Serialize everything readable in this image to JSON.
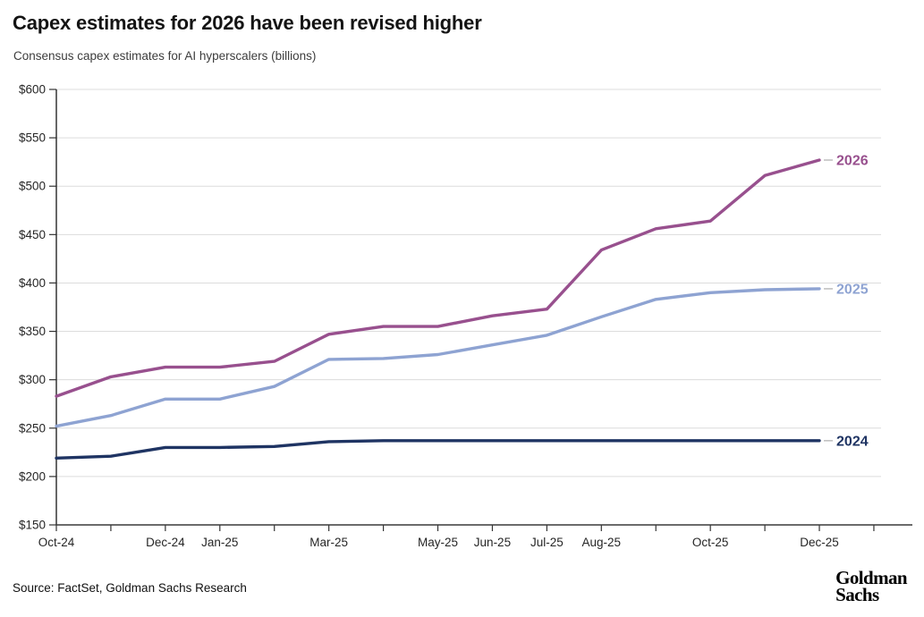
{
  "header": {
    "title": "Capex estimates for 2026 have been revised higher",
    "subtitle": "Consensus capex estimates for AI hyperscalers (billions)"
  },
  "footer": {
    "source": "Source: FactSet, Goldman Sachs Research",
    "logo_line1": "Goldman",
    "logo_line2": "Sachs"
  },
  "chart_data": {
    "type": "line",
    "title": "Capex estimates for 2026 have been revised higher",
    "subtitle": "Consensus capex estimates for AI hyperscalers (billions)",
    "categories": [
      "Oct-24",
      "Nov-24",
      "Dec-24",
      "Jan-25",
      "Feb-25",
      "Mar-25",
      "Apr-25",
      "May-25",
      "Jun-25",
      "Jul-25",
      "Aug-25",
      "Sep-25",
      "Oct-25",
      "Nov-25",
      "Dec-25"
    ],
    "x_tick_labels": [
      "Oct-24",
      "",
      "Dec-24",
      "Jan-25",
      "",
      "Mar-25",
      "",
      "May-25",
      "Jun-25",
      "Jul-25",
      "Aug-25",
      "",
      "Oct-25",
      "",
      "Dec-25",
      ""
    ],
    "series": [
      {
        "name": "2026",
        "color": "#98508E",
        "values": [
          283,
          303,
          313,
          313,
          319,
          347,
          355,
          355,
          366,
          373,
          434,
          456,
          464,
          511,
          527
        ]
      },
      {
        "name": "2025",
        "color": "#8EA3D2",
        "values": [
          252,
          263,
          280,
          280,
          293,
          321,
          322,
          326,
          336,
          346,
          365,
          383,
          390,
          393,
          394
        ]
      },
      {
        "name": "2024",
        "color": "#1F3463",
        "values": [
          219,
          221,
          230,
          230,
          231,
          236,
          237,
          237,
          237,
          237,
          237,
          237,
          237,
          237,
          237
        ]
      }
    ],
    "y_axis": {
      "min": 150,
      "max": 600,
      "step": 50,
      "tick_prefix": "$"
    },
    "ylim": [
      150,
      600
    ],
    "grid": true,
    "legend_position": "line-end-labels",
    "colors": {
      "grid": "#dcdcdc",
      "axis": "#333333",
      "tick_text": "#262626",
      "label_dash": "#b3b3b3"
    }
  }
}
